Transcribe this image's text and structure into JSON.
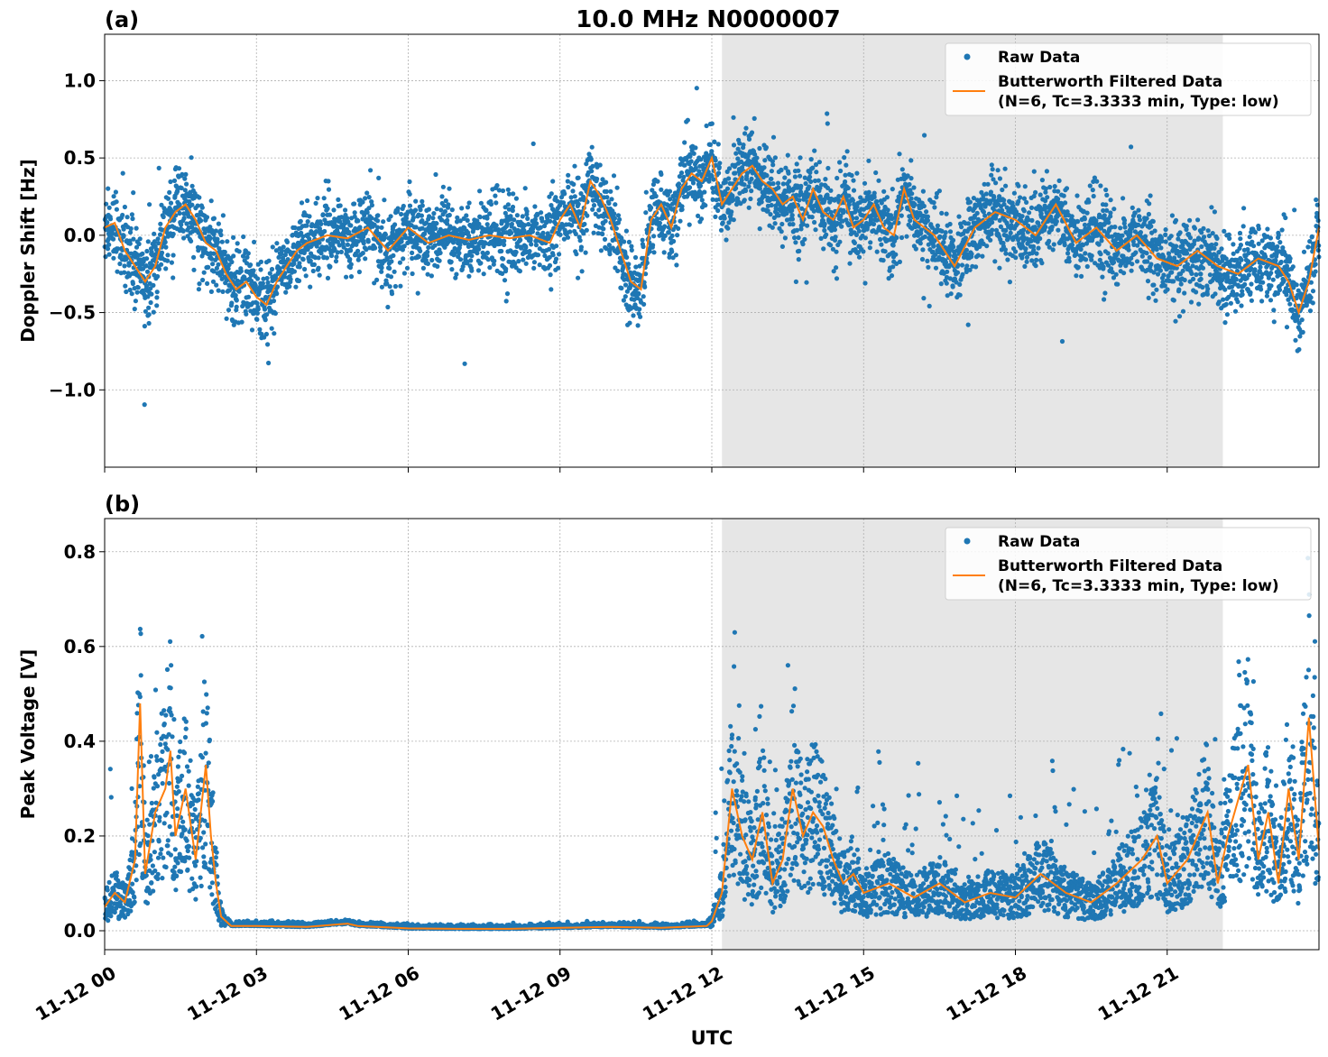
{
  "figure": {
    "title": "10.0 MHz N0000007",
    "xlabel": "UTC",
    "colors": {
      "raw": "#1f77b4",
      "filtered": "#ff7f0e",
      "shade": "#e6e6e6",
      "grid": "#b0b0b0"
    }
  },
  "chart_data": [
    {
      "type": "scatter",
      "panel_label": "(a)",
      "ylabel": "Doppler Shift [Hz]",
      "ylim": [
        -1.5,
        1.3
      ],
      "xlim_hours": [
        0,
        24
      ],
      "yticks": [
        1.0,
        0.5,
        0.0,
        -0.5,
        -1.0
      ],
      "ytick_labels": [
        "1.0",
        "0.5",
        "0.0",
        "−0.5",
        "−1.0"
      ],
      "xticks_hours": [
        0,
        3,
        6,
        9,
        12,
        15,
        18,
        21
      ],
      "xtick_labels": [
        "11-12 00",
        "11-12 03",
        "11-12 06",
        "11-12 09",
        "11-12 12",
        "11-12 15",
        "11-12 18",
        "11-12 21"
      ],
      "grid": true,
      "shaded_region_hours": [
        12.2,
        22.1
      ],
      "legend": {
        "placement": "top-right",
        "entries": [
          {
            "label": "Raw Data",
            "marker": "dot"
          },
          {
            "label": "Butterworth Filtered Data\n(N=6, Tc=3.3333 min, Type: low)",
            "marker": "line"
          }
        ]
      },
      "series": [
        {
          "name": "Butterworth Filtered Data",
          "x_hours": [
            0,
            0.2,
            0.4,
            0.6,
            0.8,
            1.0,
            1.2,
            1.4,
            1.6,
            1.8,
            2.0,
            2.2,
            2.4,
            2.6,
            2.8,
            3.0,
            3.2,
            3.4,
            3.6,
            3.8,
            4.0,
            4.4,
            4.8,
            5.2,
            5.6,
            6.0,
            6.4,
            6.8,
            7.2,
            7.6,
            8.0,
            8.4,
            8.8,
            9.0,
            9.2,
            9.4,
            9.6,
            9.8,
            10.0,
            10.2,
            10.4,
            10.6,
            10.8,
            11.0,
            11.2,
            11.4,
            11.6,
            11.8,
            12.0,
            12.2,
            12.4,
            12.6,
            12.8,
            13.0,
            13.2,
            13.4,
            13.6,
            13.8,
            14.0,
            14.2,
            14.4,
            14.6,
            14.8,
            15.0,
            15.2,
            15.4,
            15.6,
            15.8,
            16.0,
            16.4,
            16.8,
            17.2,
            17.6,
            18.0,
            18.4,
            18.8,
            19.2,
            19.6,
            20.0,
            20.4,
            20.8,
            21.2,
            21.6,
            22.0,
            22.4,
            22.8,
            23.2,
            23.4,
            23.6,
            23.8,
            24.0
          ],
          "y": [
            0.05,
            0.08,
            -0.1,
            -0.2,
            -0.3,
            -0.2,
            0.05,
            0.15,
            0.2,
            0.1,
            -0.05,
            -0.1,
            -0.25,
            -0.35,
            -0.3,
            -0.4,
            -0.45,
            -0.3,
            -0.2,
            -0.1,
            -0.05,
            0.0,
            -0.02,
            0.05,
            -0.1,
            0.05,
            -0.05,
            0.0,
            -0.03,
            0.0,
            -0.02,
            0.0,
            -0.05,
            0.1,
            0.2,
            0.05,
            0.35,
            0.25,
            0.1,
            -0.1,
            -0.3,
            -0.35,
            0.1,
            0.2,
            0.05,
            0.3,
            0.4,
            0.35,
            0.5,
            0.2,
            0.3,
            0.4,
            0.45,
            0.35,
            0.3,
            0.2,
            0.25,
            0.1,
            0.3,
            0.15,
            0.1,
            0.25,
            0.05,
            0.1,
            0.2,
            0.05,
            0.0,
            0.3,
            0.1,
            0.0,
            -0.2,
            0.05,
            0.15,
            0.1,
            0.0,
            0.2,
            -0.05,
            0.05,
            -0.1,
            0.0,
            -0.15,
            -0.2,
            -0.1,
            -0.2,
            -0.25,
            -0.15,
            -0.2,
            -0.3,
            -0.5,
            -0.3,
            0.05
          ]
        }
      ]
    },
    {
      "type": "scatter",
      "panel_label": "(b)",
      "ylabel": "Peak Voltage [V]",
      "ylim": [
        -0.04,
        0.87
      ],
      "xlim_hours": [
        0,
        24
      ],
      "yticks": [
        0.8,
        0.6,
        0.4,
        0.2,
        0.0
      ],
      "ytick_labels": [
        "0.8",
        "0.6",
        "0.4",
        "0.2",
        "0.0"
      ],
      "xticks_hours": [
        0,
        3,
        6,
        9,
        12,
        15,
        18,
        21
      ],
      "xtick_labels": [
        "11-12 00",
        "11-12 03",
        "11-12 06",
        "11-12 09",
        "11-12 12",
        "11-12 15",
        "11-12 18",
        "11-12 21"
      ],
      "grid": true,
      "shaded_region_hours": [
        12.2,
        22.1
      ],
      "legend": {
        "placement": "top-right",
        "entries": [
          {
            "label": "Raw Data",
            "marker": "dot"
          },
          {
            "label": "Butterworth Filtered Data\n(N=6, Tc=3.3333 min, Type: low)",
            "marker": "line"
          }
        ]
      },
      "series": [
        {
          "name": "Butterworth Filtered Data",
          "x_hours": [
            0,
            0.2,
            0.4,
            0.6,
            0.7,
            0.8,
            1.0,
            1.2,
            1.3,
            1.4,
            1.6,
            1.8,
            2.0,
            2.1,
            2.2,
            2.3,
            2.5,
            3.0,
            4.0,
            4.8,
            5.0,
            6.0,
            7.0,
            8.0,
            9.0,
            10.0,
            11.0,
            11.9,
            12.0,
            12.2,
            12.4,
            12.6,
            12.8,
            13.0,
            13.2,
            13.4,
            13.6,
            13.8,
            14.0,
            14.2,
            14.4,
            14.6,
            14.8,
            15.0,
            15.5,
            16.0,
            16.5,
            17.0,
            17.5,
            18.0,
            18.5,
            19.0,
            19.5,
            20.0,
            20.5,
            20.8,
            21.0,
            21.4,
            21.8,
            22.0,
            22.2,
            22.6,
            22.8,
            23.0,
            23.2,
            23.4,
            23.6,
            23.8,
            24.0
          ],
          "y": [
            0.05,
            0.08,
            0.06,
            0.15,
            0.48,
            0.12,
            0.25,
            0.3,
            0.38,
            0.2,
            0.3,
            0.15,
            0.35,
            0.2,
            0.1,
            0.03,
            0.01,
            0.01,
            0.008,
            0.015,
            0.01,
            0.005,
            0.004,
            0.004,
            0.006,
            0.008,
            0.006,
            0.01,
            0.02,
            0.08,
            0.3,
            0.2,
            0.15,
            0.25,
            0.1,
            0.15,
            0.3,
            0.2,
            0.25,
            0.22,
            0.15,
            0.1,
            0.12,
            0.08,
            0.1,
            0.07,
            0.1,
            0.06,
            0.08,
            0.07,
            0.12,
            0.08,
            0.06,
            0.1,
            0.15,
            0.2,
            0.1,
            0.15,
            0.25,
            0.1,
            0.2,
            0.35,
            0.15,
            0.25,
            0.1,
            0.3,
            0.15,
            0.45,
            0.17
          ]
        }
      ]
    }
  ]
}
